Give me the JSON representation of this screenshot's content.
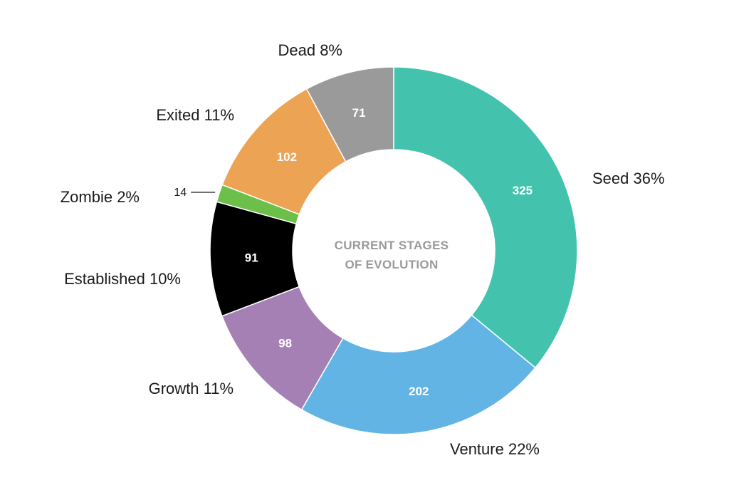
{
  "chart_data": {
    "type": "pie",
    "title": "CURRENT STAGES OF EVOLUTION",
    "title_lines": [
      "CURRENT STAGES",
      "OF EVOLUTION"
    ],
    "donut": true,
    "slices": [
      {
        "label": "Seed",
        "value": 325,
        "percent": "36%",
        "color": "#43C3AE"
      },
      {
        "label": "Venture",
        "value": 202,
        "percent": "22%",
        "color": "#62B4E5"
      },
      {
        "label": "Growth",
        "value": 98,
        "percent": "11%",
        "color": "#A580B4"
      },
      {
        "label": "Established",
        "value": 91,
        "percent": "10%",
        "color": "#000000"
      },
      {
        "label": "Zombie",
        "value": 14,
        "percent": "2%",
        "color": "#6CC04A"
      },
      {
        "label": "Exited",
        "value": 102,
        "percent": "11%",
        "color": "#EDA354"
      },
      {
        "label": "Dead",
        "value": 71,
        "percent": "8%",
        "color": "#9A9A9A"
      }
    ]
  }
}
